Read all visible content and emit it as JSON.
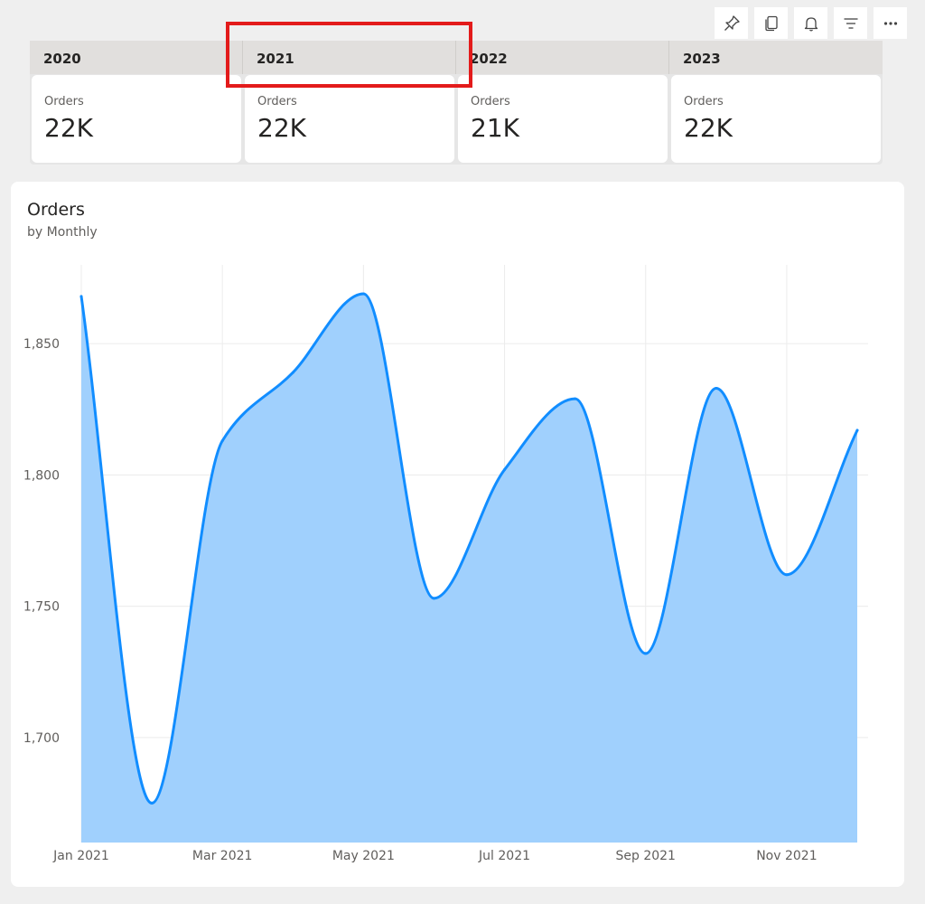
{
  "toolbar": {
    "buttons": [
      {
        "name": "pin-icon",
        "label": "Pin"
      },
      {
        "name": "copy-icon",
        "label": "Copy"
      },
      {
        "name": "bell-icon",
        "label": "Alerts"
      },
      {
        "name": "filter-icon",
        "label": "Filter"
      },
      {
        "name": "more-icon",
        "label": "More options"
      }
    ]
  },
  "cards": [
    {
      "year": "2020",
      "label": "Orders",
      "value": "22K"
    },
    {
      "year": "2021",
      "label": "Orders",
      "value": "22K"
    },
    {
      "year": "2022",
      "label": "Orders",
      "value": "21K"
    },
    {
      "year": "2023",
      "label": "Orders",
      "value": "22K"
    }
  ],
  "chart": {
    "title": "Orders",
    "subtitle": "by Monthly"
  },
  "chart_data": {
    "type": "area",
    "title": "Orders",
    "subtitle": "by Monthly",
    "xlabel": "",
    "ylabel": "",
    "x": [
      "Jan 2021",
      "Feb 2021",
      "Mar 2021",
      "Apr 2021",
      "May 2021",
      "Jun 2021",
      "Jul 2021",
      "Aug 2021",
      "Sep 2021",
      "Oct 2021",
      "Nov 2021",
      "Dec 2021"
    ],
    "x_tick_labels": [
      "Jan 2021",
      "Mar 2021",
      "May 2021",
      "Jul 2021",
      "Sep 2021",
      "Nov 2021"
    ],
    "series": [
      {
        "values": [
          1868,
          1675,
          1813,
          1839,
          1869,
          1753,
          1802,
          1829,
          1732,
          1833,
          1762,
          1817
        ]
      }
    ],
    "ylim": [
      1660,
      1880
    ],
    "y_ticks": [
      1700,
      1750,
      1800,
      1850
    ],
    "y_tick_labels": [
      "1,700",
      "1,750",
      "1,800",
      "1,850"
    ],
    "grid": true,
    "colors": {
      "line": "#118dff",
      "fill": "#a0d0fd"
    }
  },
  "colors": {
    "highlight": "#e31b1b",
    "accent": "#118dff"
  }
}
